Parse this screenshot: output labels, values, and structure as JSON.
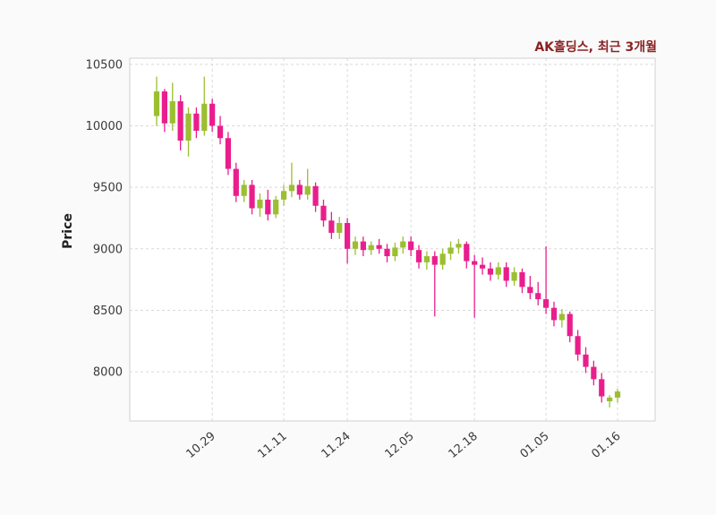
{
  "chart_data": {
    "type": "candlestick",
    "title": "AK홀딩스, 최근 3개월",
    "ylabel": "Price",
    "xlabel": "",
    "legend": "none",
    "grid": "dashed",
    "ylim": [
      7600,
      10550
    ],
    "y_ticks": [
      8000,
      8500,
      9000,
      9500,
      10000,
      10500
    ],
    "x_tick_labels": [
      "10.29",
      "11.11",
      "11.24",
      "12.05",
      "12.18",
      "01.05",
      "01.16"
    ],
    "x_tick_indices": [
      7,
      16,
      24,
      32,
      40,
      49,
      58
    ],
    "colors": {
      "up": "#9bbf30",
      "down": "#e91e8c",
      "title": "#8b2323",
      "axis_text": "#3a3a3a",
      "grid": "#d9d9d9",
      "frame": "#d0d0d0",
      "background": "#fafafa",
      "plot_background": "#ffffff"
    },
    "ohlc": [
      [
        10080,
        10400,
        10000,
        10280
      ],
      [
        10280,
        10300,
        9950,
        10020
      ],
      [
        10020,
        10350,
        9960,
        10200
      ],
      [
        10200,
        10250,
        9800,
        9880
      ],
      [
        9880,
        10150,
        9750,
        10100
      ],
      [
        10100,
        10150,
        9900,
        9960
      ],
      [
        9960,
        10400,
        9920,
        10180
      ],
      [
        10180,
        10220,
        9950,
        10000
      ],
      [
        10000,
        10080,
        9850,
        9900
      ],
      [
        9900,
        9950,
        9600,
        9650
      ],
      [
        9650,
        9700,
        9380,
        9430
      ],
      [
        9430,
        9560,
        9380,
        9520
      ],
      [
        9520,
        9560,
        9280,
        9330
      ],
      [
        9330,
        9450,
        9260,
        9400
      ],
      [
        9400,
        9480,
        9230,
        9280
      ],
      [
        9280,
        9430,
        9250,
        9400
      ],
      [
        9400,
        9520,
        9350,
        9470
      ],
      [
        9470,
        9700,
        9420,
        9520
      ],
      [
        9520,
        9560,
        9400,
        9440
      ],
      [
        9440,
        9650,
        9400,
        9510
      ],
      [
        9510,
        9540,
        9300,
        9350
      ],
      [
        9350,
        9400,
        9180,
        9230
      ],
      [
        9230,
        9300,
        9080,
        9130
      ],
      [
        9130,
        9260,
        9080,
        9210
      ],
      [
        9210,
        9250,
        8880,
        9000
      ],
      [
        9000,
        9100,
        8950,
        9060
      ],
      [
        9060,
        9100,
        8940,
        8990
      ],
      [
        8990,
        9060,
        8950,
        9030
      ],
      [
        9030,
        9080,
        8960,
        9000
      ],
      [
        9000,
        9040,
        8890,
        8940
      ],
      [
        8940,
        9050,
        8900,
        9010
      ],
      [
        9010,
        9100,
        8960,
        9060
      ],
      [
        9060,
        9100,
        8940,
        8990
      ],
      [
        8990,
        9030,
        8840,
        8890
      ],
      [
        8890,
        8980,
        8830,
        8940
      ],
      [
        8940,
        8980,
        8450,
        8870
      ],
      [
        8870,
        9000,
        8830,
        8960
      ],
      [
        8960,
        9060,
        8910,
        9010
      ],
      [
        9010,
        9080,
        8960,
        9040
      ],
      [
        9040,
        9060,
        8840,
        8900
      ],
      [
        8900,
        8950,
        8440,
        8870
      ],
      [
        8870,
        8930,
        8790,
        8840
      ],
      [
        8840,
        8890,
        8740,
        8790
      ],
      [
        8790,
        8890,
        8750,
        8850
      ],
      [
        8850,
        8890,
        8690,
        8740
      ],
      [
        8740,
        8850,
        8700,
        8810
      ],
      [
        8810,
        8840,
        8640,
        8690
      ],
      [
        8690,
        8780,
        8590,
        8640
      ],
      [
        8640,
        8730,
        8540,
        8590
      ],
      [
        8590,
        9020,
        8470,
        8520
      ],
      [
        8520,
        8570,
        8370,
        8420
      ],
      [
        8420,
        8510,
        8360,
        8470
      ],
      [
        8470,
        8490,
        8240,
        8290
      ],
      [
        8290,
        8340,
        8090,
        8140
      ],
      [
        8140,
        8200,
        7990,
        8040
      ],
      [
        8040,
        8090,
        7890,
        7940
      ],
      [
        7940,
        7990,
        7750,
        7800
      ],
      [
        7760,
        7810,
        7710,
        7790
      ],
      [
        7790,
        7860,
        7750,
        7840
      ]
    ]
  }
}
